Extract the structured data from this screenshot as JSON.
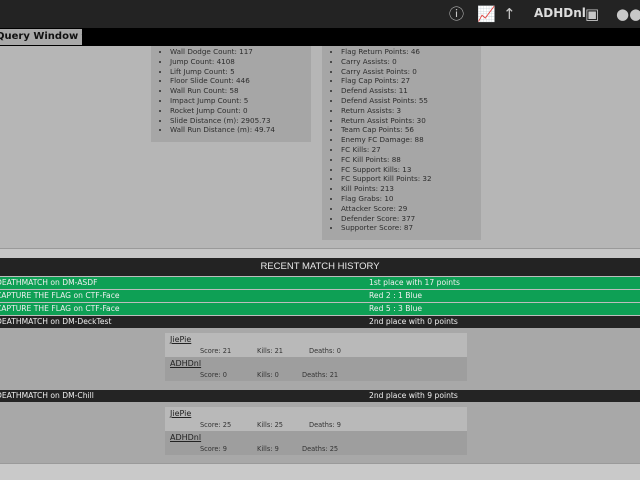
{
  "topbar": {
    "username": "ADHDnl",
    "icons": [
      "info-icon",
      "chart-icon",
      "arrow-up-icon",
      "profile-card-icon",
      "group-icon"
    ]
  },
  "query_button": {
    "label": "Query Window",
    "arrow": "▼"
  },
  "movement_stats": [
    "Wall Dodge Count: 117",
    "Jump Count: 4108",
    "Lift Jump Count: 5",
    "Floor Slide Count: 446",
    "Wall Run Count: 58",
    "Impact Jump Count: 5",
    "Rocket Jump Count: 0",
    "Slide Distance (m): 2905.73",
    "Wall Run Distance (m): 49.74"
  ],
  "ctf_stats": [
    "Flag Return Points: 46",
    "Carry Assists: 0",
    "Carry Assist Points: 0",
    "Flag Cap Points: 27",
    "Defend Assists: 11",
    "Defend Assist Points: 55",
    "Return Assists: 3",
    "Return Assist Points: 30",
    "Team Cap Points: 56",
    "Enemy FC Damage: 88",
    "FC Kills: 27",
    "FC Kill Points: 88",
    "FC Support Kills: 13",
    "FC Support Kill Points: 32",
    "Kill Points: 213",
    "Flag Grabs: 10",
    "Attacker Score: 29",
    "Defender Score: 377",
    "Supporter Score: 87"
  ],
  "match_history": {
    "title": "RECENT MATCH HISTORY",
    "colors": {
      "win": "#0ea055",
      "loss": "#242424"
    },
    "matches": [
      {
        "game": "DEATHMATCH on DM-ASDF",
        "result": "1st place with 17 points"
      },
      {
        "game": "CAPTURE THE FLAG on CTF-Face",
        "result": "Red 2 : 1 Blue"
      },
      {
        "game": "CAPTURE THE FLAG on CTF-Face",
        "result": "Red 5 : 3 Blue"
      },
      {
        "game": "DEATHMATCH on DM-DeckTest",
        "result": "2nd place with 0 points",
        "players": [
          {
            "name": "JiePie",
            "score": "Score: 21",
            "kills": "Kills: 21",
            "deaths": "Deaths: 0"
          },
          {
            "name": "ADHDnl",
            "score": "Score: 0",
            "kills": "Kills: 0",
            "deaths": "Deaths: 21"
          }
        ]
      },
      {
        "game": "DEATHMATCH on DM-Chill",
        "result": "2nd place with 9 points",
        "players": [
          {
            "name": "JiePie",
            "score": "Score: 25",
            "kills": "Kills: 25",
            "deaths": "Deaths: 9"
          },
          {
            "name": "ADHDnl",
            "score": "Score: 9",
            "kills": "Kills: 9",
            "deaths": "Deaths: 25"
          }
        ]
      }
    ]
  }
}
